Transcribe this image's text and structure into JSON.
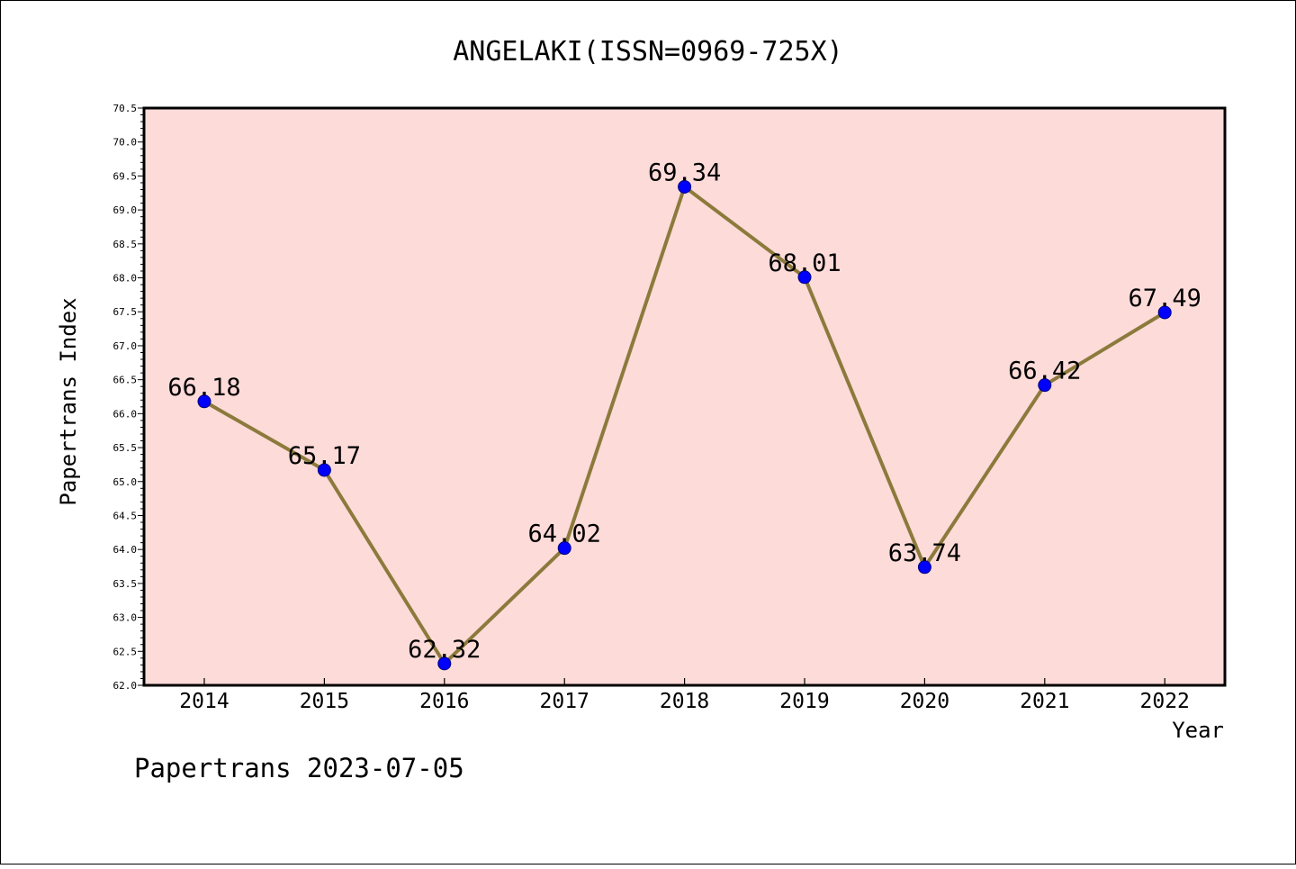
{
  "chart_data": {
    "type": "line",
    "title": "ANGELAKI(ISSN=0969-725X)",
    "xlabel": "Year",
    "ylabel": "Papertrans Index",
    "footer": "Papertrans 2023-07-05",
    "categories": [
      "2014",
      "2015",
      "2016",
      "2017",
      "2018",
      "2019",
      "2020",
      "2021",
      "2022"
    ],
    "series": [
      {
        "values": [
          66.18,
          65.17,
          62.32,
          64.02,
          69.34,
          68.01,
          63.74,
          66.42,
          67.49
        ]
      }
    ],
    "data_labels": [
      "66.18",
      "65.17",
      "62.32",
      "64.02",
      "69.34",
      "68.01",
      "63.74",
      "66.42",
      "67.49"
    ],
    "ylim": [
      62.0,
      70.5
    ],
    "yticks": [
      "62.0",
      "62.5",
      "63.0",
      "63.5",
      "64.0",
      "64.5",
      "65.0",
      "65.5",
      "66.0",
      "66.5",
      "67.0",
      "67.5",
      "68.0",
      "68.5",
      "69.0",
      "69.5",
      "70.0",
      "70.5"
    ],
    "grid": false,
    "colors": {
      "plot_background": "#fddbd9",
      "line": "#8c7a3c",
      "marker_fill": "#0000ff",
      "marker_edge": "#000080",
      "frame": "#000000"
    }
  }
}
